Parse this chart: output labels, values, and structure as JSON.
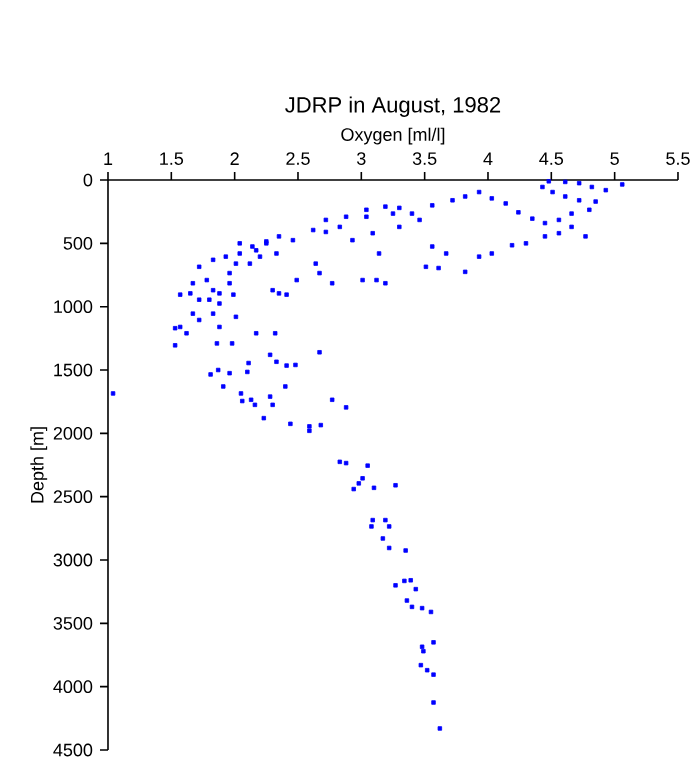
{
  "chart_data": {
    "type": "scatter",
    "title": "JDRP in August, 1982",
    "xlabel": "Oxygen [ml/l]",
    "ylabel": "Depth [m]",
    "xlim": [
      1,
      5.5
    ],
    "xticks": [
      1,
      1.5,
      2,
      2.5,
      3,
      3.5,
      4,
      4.5,
      5,
      5.5
    ],
    "ylim": [
      4500,
      0
    ],
    "yticks": [
      0,
      500,
      1000,
      1500,
      2000,
      2500,
      3000,
      3500,
      4000,
      4500
    ],
    "marker": "square",
    "color": "#0000ff",
    "x": [
      5.06,
      4.93,
      4.82,
      4.72,
      4.61,
      4.48,
      4.43,
      4.51,
      4.61,
      4.72,
      4.85,
      4.8,
      4.66,
      4.56,
      4.45,
      4.35,
      4.24,
      4.14,
      4.03,
      3.93,
      3.82,
      3.72,
      3.56,
      3.4,
      3.3,
      3.19,
      3.04,
      2.88,
      2.72,
      2.62,
      2.46,
      2.35,
      2.25,
      2.14,
      2.04,
      1.96,
      1.88,
      1.83,
      1.72,
      1.67,
      1.62,
      1.57,
      1.53,
      1.53,
      4.77,
      4.66,
      4.56,
      4.45,
      4.3,
      4.19,
      4.03,
      3.93,
      3.82,
      3.67,
      3.56,
      3.51,
      3.61,
      3.46,
      3.3,
      3.25,
      3.09,
      3.04,
      2.93,
      2.83,
      2.72,
      3.14,
      3.12,
      3.01,
      3.19,
      2.64,
      2.67,
      2.77,
      2.49,
      2.3,
      2.35,
      2.41,
      2.33,
      2.2,
      2.25,
      2.17,
      2.04,
      2.01,
      2.12,
      1.93,
      1.83,
      1.72,
      1.78,
      1.67,
      1.65,
      1.57,
      1.8,
      1.88,
      1.96,
      1.99,
      1.72,
      1.83,
      1.88,
      2.01,
      2.17,
      2.32,
      1.86,
      1.98,
      2.28,
      2.33,
      2.41,
      2.48,
      2.67,
      2.11,
      2.1,
      1.81,
      1.87,
      1.96,
      1.91,
      2.05,
      2.06,
      2.13,
      2.16,
      2.28,
      2.3,
      2.4,
      1.04,
      2.23,
      2.44,
      2.59,
      2.59,
      2.68,
      2.77,
      2.88,
      2.83,
      2.88,
      3.05,
      2.94,
      3.01,
      2.98,
      3.1,
      3.27,
      3.09,
      3.08,
      3.19,
      3.22,
      3.17,
      3.22,
      3.35,
      3.27,
      3.34,
      3.39,
      3.43,
      3.36,
      3.4,
      3.48,
      3.55,
      3.48,
      3.49,
      3.57,
      3.47,
      3.52,
      3.57,
      3.57,
      3.62
    ],
    "values": [
      35,
      80,
      55,
      25,
      15,
      10,
      55,
      95,
      130,
      160,
      170,
      235,
      265,
      315,
      340,
      305,
      255,
      185,
      145,
      95,
      130,
      160,
      200,
      265,
      220,
      210,
      235,
      290,
      315,
      395,
      475,
      445,
      485,
      525,
      580,
      735,
      895,
      870,
      945,
      1055,
      1210,
      1160,
      1170,
      1305,
      445,
      370,
      420,
      445,
      500,
      515,
      580,
      605,
      725,
      580,
      525,
      685,
      695,
      315,
      370,
      265,
      420,
      290,
      475,
      370,
      410,
      580,
      790,
      790,
      815,
      660,
      735,
      815,
      790,
      870,
      895,
      905,
      580,
      605,
      500,
      555,
      500,
      660,
      660,
      605,
      630,
      685,
      790,
      815,
      895,
      905,
      945,
      975,
      815,
      905,
      1105,
      1055,
      1160,
      1080,
      1210,
      1210,
      1290,
      1290,
      1380,
      1435,
      1465,
      1460,
      1360,
      1445,
      1515,
      1535,
      1500,
      1525,
      1630,
      1685,
      1745,
      1735,
      1775,
      1710,
      1775,
      1630,
      1685,
      1880,
      1925,
      1945,
      1980,
      1935,
      1735,
      1795,
      2225,
      2235,
      2255,
      2440,
      2355,
      2395,
      2430,
      2410,
      2685,
      2735,
      2685,
      2735,
      2830,
      2905,
      2925,
      3200,
      3165,
      3160,
      3230,
      3320,
      3370,
      3380,
      3410,
      3685,
      3720,
      3650,
      3830,
      3870,
      3905,
      4125,
      4330
    ]
  }
}
